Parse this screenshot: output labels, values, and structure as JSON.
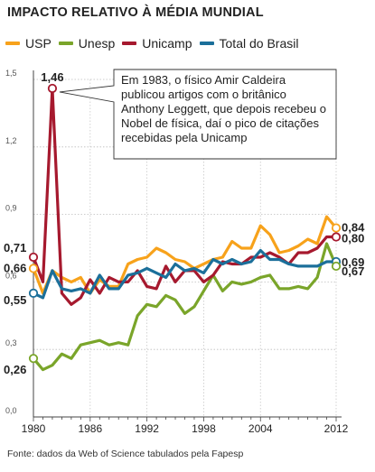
{
  "title": "IMPACTO RELATIVO À MÉDIA MUNDIAL",
  "source": "Fonte: dados da Web of Science tabulados pela Fapesp",
  "annotation": "Em 1983, o físico Amir Caldeira publicou artigos com o britânico Anthony Leggett, que depois recebeu o Nobel de física, daí o pico de citações recebidas pela Unicamp",
  "chart_data": {
    "type": "line",
    "title": "IMPACTO RELATIVO À MÉDIA MUNDIAL",
    "xlabel": "",
    "ylabel": "",
    "xlim": [
      1980,
      2012
    ],
    "ylim": [
      0,
      1.5
    ],
    "grid": true,
    "legend_position": "top",
    "x_ticks": [
      1980,
      1986,
      1992,
      1998,
      2004,
      2012
    ],
    "x_tick_labels": [
      "1980",
      "1986",
      "1992",
      "1998",
      "2004",
      "2012"
    ],
    "y_ticks": [
      0,
      0.3,
      0.6,
      0.9,
      1.2,
      1.5
    ],
    "y_tick_labels": [
      "0,0",
      "0,3",
      "0,6",
      "0,9",
      "1,2",
      "1,5"
    ],
    "x": [
      1980,
      1981,
      1982,
      1983,
      1984,
      1985,
      1986,
      1987,
      1988,
      1989,
      1990,
      1991,
      1992,
      1993,
      1994,
      1995,
      1996,
      1997,
      1998,
      1999,
      2000,
      2001,
      2002,
      2003,
      2004,
      2005,
      2006,
      2007,
      2008,
      2009,
      2010,
      2011,
      2012
    ],
    "series": [
      {
        "name": "USP",
        "color": "#f7a21b",
        "values": [
          0.66,
          0.55,
          0.65,
          0.62,
          0.6,
          0.62,
          0.55,
          0.61,
          0.58,
          0.58,
          0.68,
          0.7,
          0.71,
          0.75,
          0.73,
          0.7,
          0.69,
          0.66,
          0.68,
          0.7,
          0.71,
          0.78,
          0.75,
          0.75,
          0.85,
          0.81,
          0.73,
          0.74,
          0.76,
          0.79,
          0.77,
          0.89,
          0.84
        ]
      },
      {
        "name": "Unesp",
        "color": "#7aa52a",
        "values": [
          0.26,
          0.21,
          0.23,
          0.28,
          0.26,
          0.32,
          0.33,
          0.34,
          0.32,
          0.33,
          0.32,
          0.45,
          0.5,
          0.49,
          0.54,
          0.52,
          0.46,
          0.49,
          0.56,
          0.63,
          0.56,
          0.6,
          0.59,
          0.6,
          0.62,
          0.63,
          0.57,
          0.57,
          0.58,
          0.57,
          0.62,
          0.77,
          0.67
        ]
      },
      {
        "name": "Unicamp",
        "color": "#a6192e",
        "values": [
          0.71,
          0.6,
          1.46,
          0.55,
          0.5,
          0.53,
          0.61,
          0.55,
          0.62,
          0.6,
          0.6,
          0.65,
          0.58,
          0.57,
          0.67,
          0.6,
          0.65,
          0.65,
          0.6,
          0.63,
          0.69,
          0.68,
          0.68,
          0.71,
          0.71,
          0.73,
          0.71,
          0.68,
          0.73,
          0.73,
          0.75,
          0.8,
          0.8
        ]
      },
      {
        "name": "Total do Brasil",
        "color": "#1b6f9a",
        "values": [
          0.55,
          0.53,
          0.65,
          0.57,
          0.56,
          0.57,
          0.55,
          0.63,
          0.57,
          0.57,
          0.63,
          0.64,
          0.66,
          0.64,
          0.62,
          0.68,
          0.65,
          0.66,
          0.64,
          0.7,
          0.68,
          0.7,
          0.68,
          0.69,
          0.74,
          0.7,
          0.7,
          0.68,
          0.67,
          0.67,
          0.67,
          0.69,
          0.69
        ]
      }
    ],
    "end_markers": [
      {
        "series": "Unesp",
        "x": 1980,
        "value": 0.26,
        "label": "0,26",
        "side": "left"
      },
      {
        "series": "Total do Brasil",
        "x": 1980,
        "value": 0.55,
        "label": "0,55",
        "side": "left"
      },
      {
        "series": "USP",
        "x": 1980,
        "value": 0.66,
        "label": "0,66",
        "side": "left"
      },
      {
        "series": "Unicamp",
        "x": 1980,
        "value": 0.71,
        "label": "0,71",
        "side": "left"
      },
      {
        "series": "Unicamp",
        "x": 1982,
        "value": 1.46,
        "label": "1,46",
        "side": "top"
      },
      {
        "series": "USP",
        "x": 2012,
        "value": 0.84,
        "label": "0,84",
        "side": "right"
      },
      {
        "series": "Unicamp",
        "x": 2012,
        "value": 0.8,
        "label": "0,80",
        "side": "right"
      },
      {
        "series": "Total do Brasil",
        "x": 2012,
        "value": 0.69,
        "label": "0,69",
        "side": "right"
      },
      {
        "series": "Unesp",
        "x": 2012,
        "value": 0.67,
        "label": "0,67",
        "side": "right"
      }
    ]
  }
}
